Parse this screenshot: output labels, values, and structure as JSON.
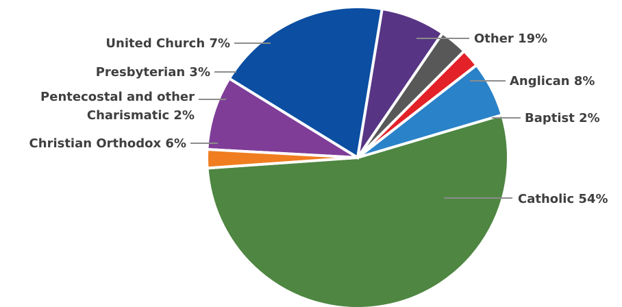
{
  "chart_data": {
    "type": "pie",
    "title": "",
    "legend": "none",
    "slices": [
      {
        "name": "Catholic",
        "value": 54,
        "label": "Catholic 54%",
        "color": "#4f8642"
      },
      {
        "name": "Christian Orthodox",
        "value": 6,
        "label": "Christian Orthodox 6%",
        "color": "#2a82c8"
      },
      {
        "name": "Pentecostal and other Charismatic",
        "value": 2,
        "label_lines": [
          "Pentecostal and other",
          "Charismatic 2%"
        ],
        "color": "#e32128"
      },
      {
        "name": "Presbyterian",
        "value": 3,
        "label": "Presbyterian 3%",
        "color": "#585858"
      },
      {
        "name": "United Church",
        "value": 7,
        "label": "United Church 7%",
        "color": "#573584"
      },
      {
        "name": "Other",
        "value": 19,
        "label": "Other 19%",
        "color": "#0b4ea2"
      },
      {
        "name": "Anglican",
        "value": 8,
        "label": "Anglican 8%",
        "color": "#7f3d98"
      },
      {
        "name": "Baptist",
        "value": 2,
        "label": "Baptist 2%",
        "color": "#f07d1f"
      }
    ]
  }
}
